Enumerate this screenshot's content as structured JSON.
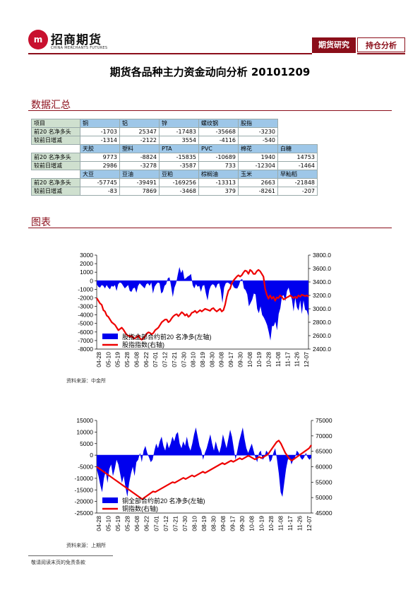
{
  "header": {
    "logo_mark": "m",
    "logo_cn": "招商期货",
    "logo_en": "CHINA MERCHANTS FUTURES",
    "tab_research": "期货研究",
    "tab_position": "持仓分析"
  },
  "title": "期货各品种主力资金动向分析 20101209",
  "sections": {
    "summary": "数据汇总",
    "charts": "图表"
  },
  "table": {
    "row_label_net": "前20 名净多头",
    "row_label_change": "较前日增减",
    "groups": [
      {
        "headers": [
          "项目",
          "铜",
          "铝",
          "锌",
          "螺纹钢",
          "股指"
        ],
        "net": [
          "-1703",
          "25347",
          "-17483",
          "-35668",
          "-3230"
        ],
        "change": [
          "-1314",
          "-2122",
          "3554",
          "-4116",
          "-540"
        ]
      },
      {
        "headers": [
          "",
          "天胶",
          "塑料",
          "PTA",
          "PVC",
          "棉花",
          "白糖"
        ],
        "net": [
          "9773",
          "-8824",
          "-15835",
          "-10689",
          "1940",
          "14753"
        ],
        "change": [
          "2986",
          "-3278",
          "-3587",
          "733",
          "-12304",
          "-1464"
        ]
      },
      {
        "headers": [
          "",
          "大豆",
          "豆油",
          "豆粕",
          "棕榈油",
          "玉米",
          "早籼稻"
        ],
        "net": [
          "-57745",
          "-39491",
          "-169256",
          "-13313",
          "2663",
          "-21848"
        ],
        "change": [
          "-83",
          "7869",
          "-3468",
          "379",
          "-8261",
          "-207"
        ]
      }
    ]
  },
  "chart_data": [
    {
      "type": "area+line",
      "left_ticks": [
        "3000",
        "2000",
        "1000",
        "0",
        "-1000",
        "-2000",
        "-3000",
        "-4000",
        "-5000",
        "-6000",
        "-7000",
        "-8000"
      ],
      "right_ticks": [
        "3800.0",
        "3600.0",
        "3400.0",
        "3200.0",
        "3000.0",
        "2800.0",
        "2600.0",
        "2400.0"
      ],
      "ylim_left": [
        -8000,
        3000
      ],
      "ylim_right": [
        2400,
        3800
      ],
      "x_labels": [
        "04-28",
        "05-10",
        "05-19",
        "05-28",
        "06-08",
        "06-22",
        "07-01",
        "07-12",
        "07-21",
        "07-30",
        "08-10",
        "08-19",
        "08-30",
        "09-08",
        "09-17",
        "09-30",
        "10-08",
        "10-19",
        "10-28",
        "11-08",
        "11-17",
        "11-26",
        "12-07"
      ],
      "legend": "top-left",
      "series": [
        {
          "name": "股指全部合约前20 名净多(左轴)",
          "axis": "left",
          "color": "#0000ee",
          "values": [
            -400,
            -700,
            -800,
            -500,
            -600,
            -900,
            -500,
            -800,
            -1000,
            -600,
            -700,
            -500,
            -1200,
            -400,
            -200,
            -300,
            -600,
            -900,
            -700,
            -500,
            -1200,
            -1300,
            -900,
            -800,
            -1400,
            -600,
            -300,
            -500,
            -700,
            -900,
            -400,
            -300,
            -600,
            -200,
            -1500,
            -700,
            -400,
            -200,
            -300,
            -1500,
            -1300,
            -600,
            -400,
            300,
            400,
            -700,
            -1900,
            -800,
            -300,
            700,
            1600,
            900,
            1300,
            200,
            300,
            500,
            600,
            800,
            -500,
            -900,
            -400,
            -700,
            -600,
            -1300,
            -600,
            -500,
            -1500,
            -2300,
            -1100,
            -600,
            -400,
            -500,
            -900,
            -400,
            -300,
            -1100,
            -2600,
            -800,
            -300,
            -200,
            -300,
            -500,
            -400,
            -800,
            -900,
            -900,
            -500,
            100,
            200,
            -900,
            -1100,
            -1600,
            -3000,
            -2600,
            -2200,
            -1500,
            -1600,
            -3300,
            -3800,
            -3000,
            -4000,
            -4300,
            -4700,
            -5200,
            -6000,
            -7000,
            -5300,
            -5300,
            -4800,
            -5800,
            -3900,
            -3200,
            -1800,
            -1700,
            -2400,
            -1200,
            -800,
            -1600,
            -2200,
            -3600,
            -2000,
            -3100,
            -3500,
            -2300,
            -3900,
            -2300,
            -3400,
            -3500,
            -4200
          ]
        },
        {
          "name": "股指指数(右轴)",
          "axis": "right",
          "color": "#ee0000",
          "values": [
            3160,
            3120,
            3080,
            3060,
            2980,
            2960,
            2900,
            2880,
            2840,
            2800,
            2780,
            2760,
            2720,
            2680,
            2700,
            2720,
            2690,
            2650,
            2610,
            2600,
            2580,
            2600,
            2560,
            2560,
            2580,
            2600,
            2560,
            2540,
            2560,
            2590,
            2630,
            2650,
            2640,
            2620,
            2640,
            2680,
            2700,
            2720,
            2760,
            2800,
            2820,
            2840,
            2840,
            2800,
            2820,
            2860,
            2890,
            2910,
            2920,
            2890,
            2920,
            2950,
            2930,
            2900,
            2920,
            2880,
            2900,
            2940,
            2950,
            2970,
            2940,
            2960,
            2980,
            2960,
            2980,
            3000,
            2990,
            2980,
            2970,
            3000,
            3010,
            2980,
            2960,
            2980,
            3000,
            2960,
            2980,
            3060,
            3180,
            3270,
            3300,
            3380,
            3420,
            3450,
            3480,
            3500,
            3480,
            3500,
            3540,
            3570,
            3560,
            3520,
            3580,
            3560,
            3520,
            3520,
            3560,
            3580,
            3560,
            3520,
            3480,
            3300,
            3210,
            3150,
            3200,
            3150,
            3180,
            3120,
            3170,
            3160,
            3200,
            3180,
            3140,
            3150,
            3170,
            3180,
            3200,
            3180,
            3160,
            3180,
            3160,
            3200,
            3180,
            3210,
            3200,
            3190,
            3200,
            3180
          ]
        }
      ],
      "source": "资料来源：中金所"
    },
    {
      "type": "area+line",
      "left_ticks": [
        "15000",
        "10000",
        "5000",
        "0",
        "-5000",
        "-10000",
        "-15000",
        "-20000",
        "-25000"
      ],
      "right_ticks": [
        "75000",
        "70000",
        "65000",
        "60000",
        "55000",
        "50000",
        "45000"
      ],
      "ylim_left": [
        -25000,
        15000
      ],
      "ylim_right": [
        45000,
        75000
      ],
      "x_labels": [
        "04-28",
        "05-10",
        "05-19",
        "05-28",
        "06-08",
        "06-22",
        "07-01",
        "07-12",
        "07-21",
        "07-30",
        "08-10",
        "08-19",
        "08-30",
        "09-08",
        "09-17",
        "09-30",
        "10-08",
        "10-19",
        "10-28",
        "11-08",
        "11-17",
        "11-26",
        "12-07"
      ],
      "legend": "bottom-left",
      "series": [
        {
          "name": "铜全部合约前20 名净多(左轴)",
          "axis": "left",
          "color": "#0000ee",
          "values": [
            -6000,
            -9000,
            -13000,
            -16000,
            -10000,
            -7000,
            -12000,
            -6000,
            -4000,
            -9000,
            -6000,
            -2000,
            -4000,
            -8000,
            -12000,
            -9000,
            -14000,
            -18000,
            -12000,
            -8000,
            -5000,
            -9000,
            -3000,
            -2000,
            1000,
            -3000,
            2000,
            4000,
            1000,
            -1000,
            -3000,
            -2000,
            2000,
            5000,
            3000,
            6000,
            8000,
            4000,
            2000,
            6000,
            3000,
            5000,
            8000,
            6000,
            9000,
            10000,
            5000,
            3000,
            6000,
            4000,
            8000,
            4000,
            2000,
            5000,
            9000,
            12000,
            8000,
            4000,
            2000,
            -2000,
            1000,
            3000,
            6000,
            9000,
            5000,
            2000,
            6000,
            3000,
            1000,
            4000,
            9000,
            6000,
            3000,
            7000,
            11000,
            8000,
            3000,
            -2000,
            2000,
            6000,
            9000,
            12000,
            7000,
            3000,
            1000,
            3000,
            5000,
            2000,
            -1000,
            -3000,
            1000,
            2000,
            -2000,
            -1000,
            2000,
            1000,
            -3000,
            -2000,
            1000,
            3000,
            -2000,
            -8000,
            -16000,
            -18000,
            -12000,
            -6000,
            -2000,
            -1000,
            -4000,
            -2000,
            -1000,
            2000,
            1000,
            -1000,
            -2000,
            -1000,
            1000,
            -1000,
            -2000,
            -1000
          ]
        },
        {
          "name": "铜指数(右轴)",
          "axis": "right",
          "color": "#ee0000",
          "values": [
            60000,
            59500,
            59000,
            58500,
            58000,
            57500,
            57000,
            56500,
            56000,
            55500,
            55000,
            54500,
            54000,
            53500,
            53000,
            52500,
            52000,
            51500,
            51000,
            50500,
            50000,
            49500,
            50000,
            50500,
            51000,
            51500,
            52000,
            51800,
            52200,
            52600,
            53000,
            53400,
            53800,
            54200,
            54600,
            55000,
            54800,
            55200,
            55600,
            56000,
            56400,
            56000,
            56400,
            56800,
            57200,
            56800,
            57200,
            57600,
            58000,
            58400,
            58000,
            58400,
            58800,
            59200,
            59600,
            60000,
            60400,
            60800,
            61200,
            60800,
            61200,
            61600,
            62000,
            61600,
            62000,
            62400,
            62800,
            62400,
            62800,
            63200,
            63600,
            63200,
            62800,
            62400,
            62800,
            63200,
            62800,
            63200,
            63600,
            64000,
            65000,
            66000,
            67000,
            68000,
            68500,
            67500,
            66000,
            64500,
            63500,
            62500,
            62000,
            62500,
            63000,
            63500,
            64000,
            64500,
            65000,
            65500,
            66000,
            67000
          ]
        }
      ],
      "source": "资料来源：上期所"
    }
  ],
  "footer": "敬请阅读末页的免责条款"
}
